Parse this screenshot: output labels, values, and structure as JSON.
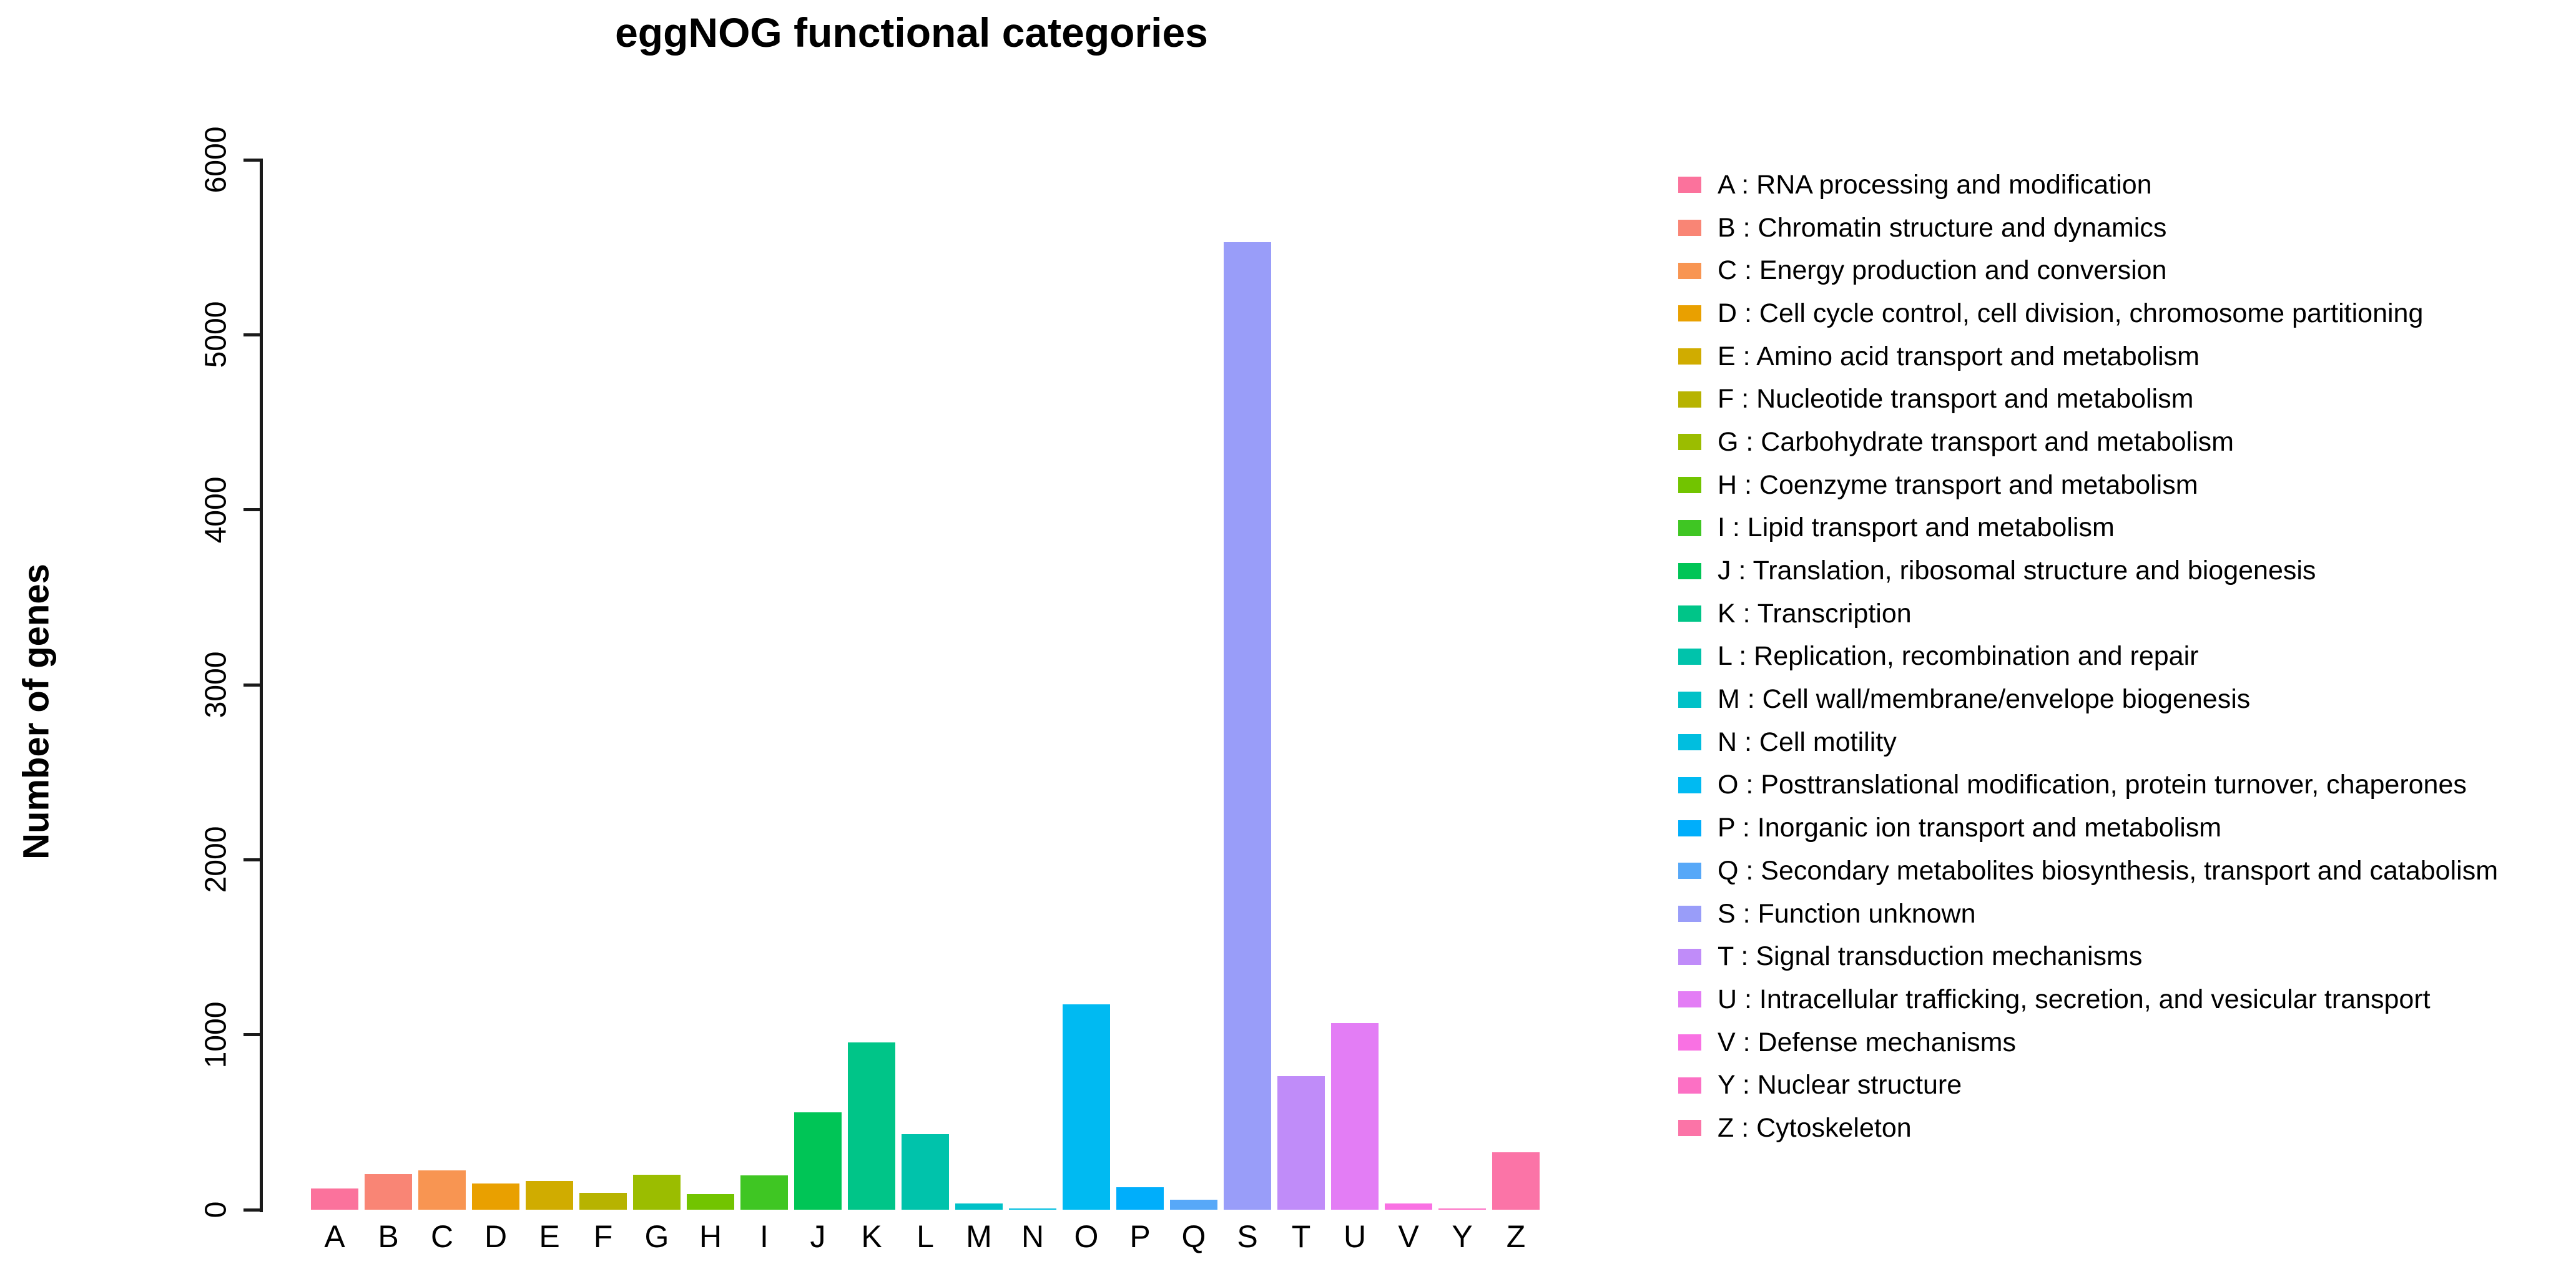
{
  "title": "eggNOG functional categories",
  "y_axis_label": "Number of genes",
  "chart_data": {
    "type": "bar",
    "title": "eggNOG functional categories",
    "xlabel": "",
    "ylabel": "Number of genes",
    "ylim": [
      0,
      6000
    ],
    "yticks": [
      0,
      1000,
      2000,
      3000,
      4000,
      5000,
      6000
    ],
    "grid": false,
    "legend_position": "right",
    "legend_separator": " :  ",
    "categories": [
      "A",
      "B",
      "C",
      "D",
      "E",
      "F",
      "G",
      "H",
      "I",
      "J",
      "K",
      "L",
      "M",
      "N",
      "O",
      "P",
      "Q",
      "S",
      "T",
      "U",
      "V",
      "Y",
      "Z"
    ],
    "values": [
      120,
      205,
      225,
      150,
      163,
      96,
      200,
      90,
      195,
      555,
      955,
      430,
      35,
      8,
      1175,
      130,
      58,
      5530,
      765,
      1065,
      35,
      8,
      330
    ],
    "colors": [
      "#FB729C",
      "#F98575",
      "#F89552",
      "#E9A000",
      "#D0AC00",
      "#B7B300",
      "#9BBD00",
      "#72C400",
      "#3FC623",
      "#00C556",
      "#00C588",
      "#00C3AB",
      "#00C1C7",
      "#00BEDF",
      "#00BAF2",
      "#00AEFB",
      "#57A8F8",
      "#999DF9",
      "#C08CF9",
      "#E37DF5",
      "#F971E3",
      "#FC70C4",
      "#FB74A7"
    ],
    "legend": [
      {
        "code": "A",
        "desc": "RNA processing and modification"
      },
      {
        "code": "B",
        "desc": "Chromatin structure and dynamics"
      },
      {
        "code": "C",
        "desc": "Energy production and conversion"
      },
      {
        "code": "D",
        "desc": "Cell cycle control, cell division, chromosome partitioning"
      },
      {
        "code": "E",
        "desc": "Amino acid transport and metabolism"
      },
      {
        "code": "F",
        "desc": "Nucleotide transport and metabolism"
      },
      {
        "code": "G",
        "desc": "Carbohydrate transport and metabolism"
      },
      {
        "code": "H",
        "desc": "Coenzyme transport and metabolism"
      },
      {
        "code": "I",
        "desc": "Lipid transport and metabolism"
      },
      {
        "code": "J",
        "desc": "Translation, ribosomal structure and biogenesis"
      },
      {
        "code": "K",
        "desc": "Transcription"
      },
      {
        "code": "L",
        "desc": "Replication, recombination and repair"
      },
      {
        "code": "M",
        "desc": "Cell wall/membrane/envelope biogenesis"
      },
      {
        "code": "N",
        "desc": "Cell motility"
      },
      {
        "code": "O",
        "desc": "Posttranslational modification, protein turnover, chaperones"
      },
      {
        "code": "P",
        "desc": "Inorganic ion transport and metabolism"
      },
      {
        "code": "Q",
        "desc": "Secondary metabolites biosynthesis, transport and catabolism"
      },
      {
        "code": "S",
        "desc": "Function unknown"
      },
      {
        "code": "T",
        "desc": "Signal transduction mechanisms"
      },
      {
        "code": "U",
        "desc": "Intracellular trafficking, secretion, and vesicular transport"
      },
      {
        "code": "V",
        "desc": "Defense mechanisms"
      },
      {
        "code": "Y",
        "desc": "Nuclear structure"
      },
      {
        "code": "Z",
        "desc": "Cytoskeleton"
      }
    ]
  }
}
